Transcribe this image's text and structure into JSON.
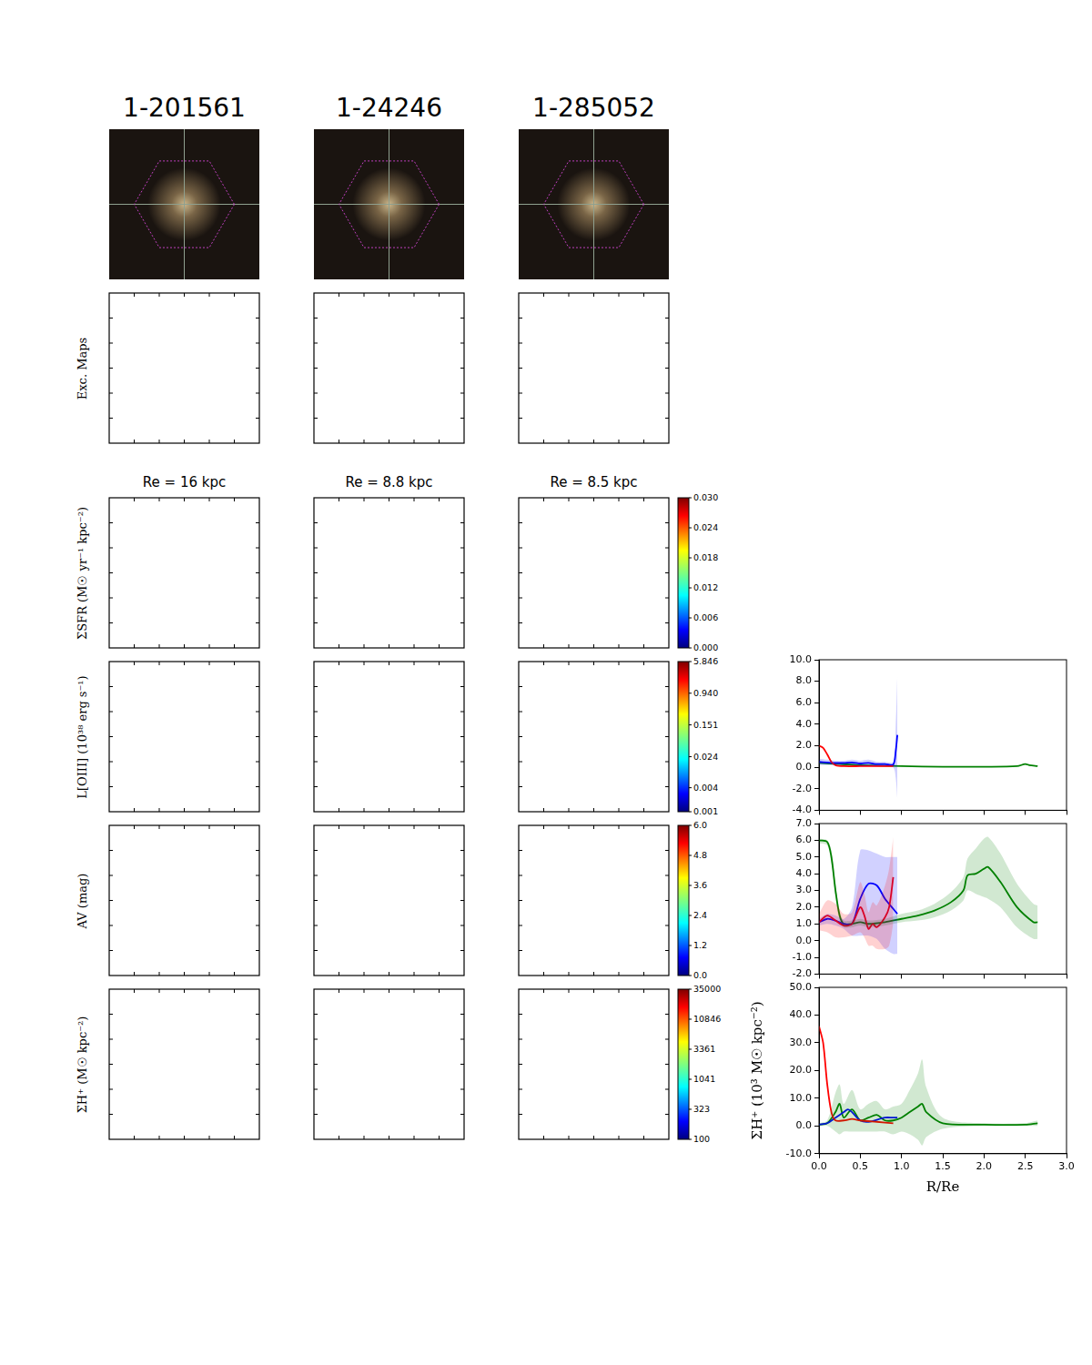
{
  "columns": [
    {
      "title": "1-201561",
      "re": "Re = 16 kpc"
    },
    {
      "title": "1-24246",
      "re": "Re = 8.8 kpc"
    },
    {
      "title": "1-285052",
      "re": "Re = 8.5 kpc"
    }
  ],
  "map_rows": [
    {
      "label": "Exc. Maps"
    },
    {
      "label": "ΣSFR (M☉ yr⁻¹ kpc⁻²)",
      "colorbar": {
        "range": [
          0,
          0.03
        ],
        "ticks": [
          {
            "value": 0,
            "label": "0.000"
          },
          {
            "value": 0.006,
            "label": "0.006"
          },
          {
            "value": 0.012,
            "label": "0.012"
          },
          {
            "value": 0.018,
            "label": "0.018"
          },
          {
            "value": 0.024,
            "label": "0.024"
          },
          {
            "value": 0.03,
            "label": "0.030"
          }
        ]
      }
    },
    {
      "label": "L[OIII] (10³⁸ erg s⁻¹)",
      "colorbar": {
        "log": true,
        "range": [
          0.001,
          5.846
        ],
        "ticks": [
          0.001,
          0.004,
          0.024,
          0.151,
          {
            "value": 0.94,
            "label": "0.940"
          },
          5.846
        ]
      }
    },
    {
      "label": "AV (mag)",
      "colorbar": {
        "range": [
          0,
          6
        ],
        "ticks": [
          {
            "value": 0,
            "label": "0.0"
          },
          1.2,
          2.4,
          3.6,
          4.8,
          {
            "value": 6,
            "label": "6.0"
          }
        ]
      }
    },
    {
      "label": "ΣH⁺ (M☉ kpc⁻²)",
      "colorbar": {
        "log": true,
        "range": [
          100,
          35000
        ],
        "ticks": [
          100,
          323,
          1041,
          3361,
          10846,
          35000
        ]
      }
    }
  ],
  "chart_data": [
    {
      "type": "line",
      "tick_labels": "y",
      "xlim": [
        0,
        3
      ],
      "xticks": [
        {
          "value": 0,
          "label": "0.0"
        },
        0.5,
        {
          "value": 1,
          "label": "1.0"
        },
        1.5,
        {
          "value": 2,
          "label": "2.0"
        },
        2.5,
        {
          "value": 3,
          "label": "3.0"
        }
      ],
      "ylim": [
        -4,
        10
      ],
      "yticks": [
        {
          "value": -4,
          "label": "-4.0"
        },
        {
          "value": -2,
          "label": "-2.0"
        },
        {
          "value": 0,
          "label": "0.0"
        },
        {
          "value": 2,
          "label": "2.0"
        },
        {
          "value": 4,
          "label": "4.0"
        },
        {
          "value": 6,
          "label": "6.0"
        },
        {
          "value": 8,
          "label": "8.0"
        },
        {
          "value": 10,
          "label": "10.0"
        }
      ],
      "series": [
        {
          "color": "#ff0000",
          "x": [
            0,
            0.05,
            0.1,
            0.15,
            0.2,
            0.3,
            0.5,
            0.7,
            0.9
          ],
          "values": [
            2.0,
            1.8,
            1.2,
            0.5,
            0.2,
            0.1,
            0.1,
            0.1,
            0.1
          ]
        },
        {
          "color": "#0000ff",
          "x": [
            0,
            0.1,
            0.2,
            0.3,
            0.4,
            0.5,
            0.6,
            0.7,
            0.8,
            0.9,
            0.93,
            0.95
          ],
          "values": [
            0.5,
            0.45,
            0.4,
            0.4,
            0.45,
            0.35,
            0.4,
            0.3,
            0.3,
            0.25,
            1.5,
            3.0
          ],
          "lower": [
            0.2,
            0.2,
            0.2,
            0.2,
            0.2,
            0.1,
            0.1,
            0.1,
            0.1,
            0,
            -1,
            -3
          ],
          "upper": [
            0.8,
            0.7,
            0.6,
            0.6,
            0.7,
            0.6,
            0.7,
            0.5,
            0.5,
            0.5,
            4,
            8.7
          ]
        },
        {
          "color": "#008000",
          "x": [
            0,
            0.25,
            0.5,
            1.0,
            1.5,
            2.0,
            2.4,
            2.5,
            2.55,
            2.65
          ],
          "values": [
            0.4,
            0.3,
            0.2,
            0.1,
            0.05,
            0.05,
            0.1,
            0.3,
            0.2,
            0.1
          ]
        }
      ]
    },
    {
      "type": "line",
      "tick_labels": "y",
      "xlim": [
        0,
        3
      ],
      "xticks": [
        {
          "value": 0,
          "label": "0.0"
        },
        0.5,
        {
          "value": 1,
          "label": "1.0"
        },
        1.5,
        {
          "value": 2,
          "label": "2.0"
        },
        2.5,
        {
          "value": 3,
          "label": "3.0"
        }
      ],
      "ylim": [
        -2,
        7
      ],
      "yticks": [
        {
          "value": -2,
          "label": "-2.0"
        },
        {
          "value": -1,
          "label": "-1.0"
        },
        {
          "value": 0,
          "label": "0.0"
        },
        {
          "value": 1,
          "label": "1.0"
        },
        {
          "value": 2,
          "label": "2.0"
        },
        {
          "value": 3,
          "label": "3.0"
        },
        {
          "value": 4,
          "label": "4.0"
        },
        {
          "value": 5,
          "label": "5.0"
        },
        {
          "value": 6,
          "label": "6.0"
        },
        {
          "value": 7,
          "label": "7.0"
        }
      ],
      "series": [
        {
          "color": "#ff0000",
          "x": [
            0,
            0.1,
            0.2,
            0.3,
            0.4,
            0.5,
            0.55,
            0.6,
            0.65,
            0.7,
            0.8,
            0.85,
            0.9
          ],
          "values": [
            1.1,
            1.5,
            1.2,
            0.9,
            1.0,
            2.0,
            1.5,
            0.7,
            1.0,
            0.8,
            1.4,
            2.0,
            3.8
          ],
          "lower": [
            0.6,
            0.5,
            0.2,
            0.2,
            0.3,
            0.5,
            0.2,
            -0.3,
            -0.3,
            -0.5,
            -0.5,
            -0.3,
            1.0
          ],
          "upper": [
            1.6,
            2.4,
            2.2,
            1.6,
            1.7,
            3.5,
            2.8,
            1.7,
            2.3,
            2.1,
            3.3,
            4.3,
            6.2
          ]
        },
        {
          "color": "#0000ff",
          "x": [
            0,
            0.1,
            0.2,
            0.3,
            0.4,
            0.5,
            0.6,
            0.7,
            0.8,
            0.9,
            0.95
          ],
          "values": [
            1.1,
            1.3,
            1.2,
            1.0,
            1.0,
            2.5,
            3.4,
            3.3,
            2.5,
            1.9,
            1.6
          ],
          "lower": [
            0.9,
            1.0,
            0.9,
            0.7,
            0.3,
            0.3,
            0.3,
            0.1,
            -0.5,
            -0.8,
            -0.8
          ],
          "upper": [
            1.3,
            1.6,
            1.5,
            1.3,
            2.0,
            5.4,
            5.4,
            5.2,
            5.0,
            5.0,
            5.0
          ]
        },
        {
          "color": "#008000",
          "x": [
            0,
            0.1,
            0.15,
            0.2,
            0.25,
            0.3,
            0.4,
            0.5,
            0.6,
            0.8,
            1.0,
            1.2,
            1.4,
            1.6,
            1.75,
            1.8,
            1.9,
            2.0,
            2.05,
            2.2,
            2.4,
            2.6,
            2.65
          ],
          "values": [
            6.0,
            5.9,
            5.0,
            3.0,
            1.5,
            1.0,
            1.0,
            1.1,
            1.0,
            1.1,
            1.3,
            1.5,
            1.8,
            2.3,
            3.0,
            3.9,
            4.0,
            4.3,
            4.4,
            3.5,
            2.0,
            1.1,
            1.1
          ],
          "lower": [
            5.8,
            5.7,
            4.6,
            2.6,
            1.2,
            0.8,
            0.8,
            0.9,
            0.8,
            0.9,
            1.1,
            1.2,
            1.4,
            1.8,
            2.4,
            3.0,
            2.8,
            2.6,
            2.5,
            2.0,
            0.8,
            0.1,
            0.1
          ],
          "upper": [
            6.1,
            6.0,
            5.4,
            3.4,
            1.8,
            1.2,
            1.2,
            1.3,
            1.2,
            1.3,
            1.6,
            1.8,
            2.2,
            2.9,
            3.8,
            4.9,
            5.5,
            6.1,
            6.2,
            5.2,
            3.4,
            2.2,
            2.1
          ]
        }
      ]
    },
    {
      "type": "line",
      "x_label": "R/Re",
      "y_label": "ΣH⁺ (10³ M☉ kpc⁻²)",
      "xlim": [
        0,
        3
      ],
      "xticks": [
        {
          "value": 0,
          "label": "0.0"
        },
        0.5,
        {
          "value": 1,
          "label": "1.0"
        },
        1.5,
        {
          "value": 2,
          "label": "2.0"
        },
        2.5,
        {
          "value": 3,
          "label": "3.0"
        }
      ],
      "ylim": [
        -10,
        50
      ],
      "yticks": [
        {
          "value": -10,
          "label": "-10.0"
        },
        {
          "value": 0,
          "label": "0.0"
        },
        {
          "value": 10,
          "label": "10.0"
        },
        {
          "value": 20,
          "label": "20.0"
        },
        {
          "value": 30,
          "label": "30.0"
        },
        {
          "value": 40,
          "label": "40.0"
        },
        {
          "value": 50,
          "label": "50.0"
        }
      ],
      "series": [
        {
          "color": "#ff0000",
          "x": [
            0,
            0.05,
            0.1,
            0.15,
            0.2,
            0.3,
            0.4,
            0.5,
            0.7,
            0.9
          ],
          "values": [
            36,
            30,
            15,
            5,
            2,
            2,
            2.5,
            2,
            1.5,
            1
          ]
        },
        {
          "color": "#0000ff",
          "x": [
            0,
            0.1,
            0.2,
            0.3,
            0.35,
            0.4,
            0.5,
            0.6,
            0.8,
            0.9,
            0.95
          ],
          "values": [
            0.5,
            1,
            3,
            5,
            6,
            5,
            2,
            1.5,
            3,
            3,
            3
          ]
        },
        {
          "color": "#008000",
          "x": [
            0,
            0.1,
            0.2,
            0.25,
            0.3,
            0.4,
            0.5,
            0.6,
            0.7,
            0.8,
            0.9,
            1.0,
            1.1,
            1.2,
            1.25,
            1.3,
            1.5,
            2.0,
            2.5,
            2.65
          ],
          "values": [
            0.5,
            1,
            5,
            8,
            3,
            6,
            2,
            3,
            4,
            2,
            2,
            3,
            5,
            7,
            8,
            5,
            1,
            0.5,
            0.5,
            1
          ],
          "lower": [
            0,
            0,
            -2,
            -3,
            -2,
            -2,
            -2,
            -2,
            -2,
            -2,
            -3,
            -2,
            -3,
            -5,
            -7,
            -4,
            -1,
            0,
            0,
            0
          ],
          "upper": [
            1,
            2,
            12,
            15,
            8,
            13,
            6,
            8,
            9,
            6,
            7,
            8,
            13,
            19,
            24,
            14,
            3,
            1,
            1,
            2
          ]
        }
      ]
    }
  ]
}
